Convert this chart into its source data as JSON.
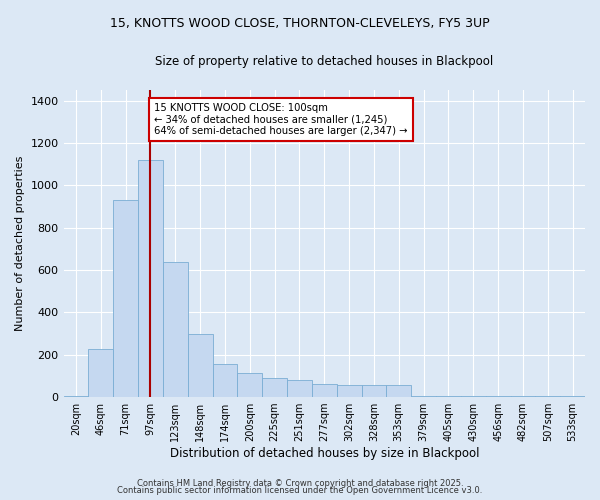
{
  "title_line1": "15, KNOTTS WOOD CLOSE, THORNTON-CLEVELEYS, FY5 3UP",
  "title_line2": "Size of property relative to detached houses in Blackpool",
  "xlabel": "Distribution of detached houses by size in Blackpool",
  "ylabel": "Number of detached properties",
  "categories": [
    "20sqm",
    "46sqm",
    "71sqm",
    "97sqm",
    "123sqm",
    "148sqm",
    "174sqm",
    "200sqm",
    "225sqm",
    "251sqm",
    "277sqm",
    "302sqm",
    "328sqm",
    "353sqm",
    "379sqm",
    "405sqm",
    "430sqm",
    "456sqm",
    "482sqm",
    "507sqm",
    "533sqm"
  ],
  "values": [
    5,
    225,
    930,
    1120,
    640,
    300,
    155,
    115,
    90,
    80,
    60,
    55,
    55,
    55,
    5,
    5,
    5,
    5,
    5,
    5,
    5
  ],
  "bar_color": "#c5d8f0",
  "bar_edge_color": "#7aadd4",
  "vline_x_idx": 3,
  "vline_color": "#aa0000",
  "annotation_text": "15 KNOTTS WOOD CLOSE: 100sqm\n← 34% of detached houses are smaller (1,245)\n64% of semi-detached houses are larger (2,347) →",
  "annotation_box_color": "#ffffff",
  "annotation_box_edge": "#cc0000",
  "ylim": [
    0,
    1450
  ],
  "yticks": [
    0,
    200,
    400,
    600,
    800,
    1000,
    1200,
    1400
  ],
  "background_color": "#dce8f5",
  "grid_color": "#ffffff",
  "footer1": "Contains HM Land Registry data © Crown copyright and database right 2025.",
  "footer2": "Contains public sector information licensed under the Open Government Licence v3.0."
}
